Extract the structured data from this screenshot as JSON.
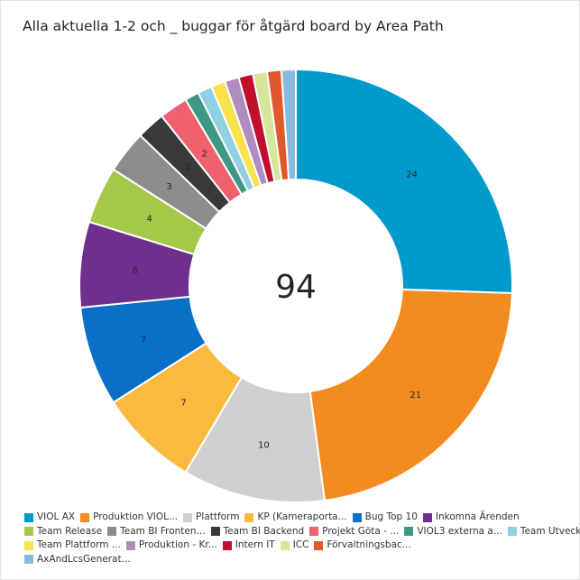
{
  "title": "Alla aktuella 1-2 och _ buggar för åtgärd board by Area Path",
  "chart_data": {
    "type": "pie",
    "variant": "donut",
    "title": "Alla aktuella 1-2 och _ buggar för åtgärd board by Area Path",
    "center_label": "94",
    "legend_position": "bottom",
    "slices": [
      {
        "label": "VIOL AX",
        "value": 24,
        "color": "#0099cc",
        "data_label": "24"
      },
      {
        "label": "Produktion VIOL...",
        "value": 21,
        "color": "#f38b1f",
        "data_label": "21"
      },
      {
        "label": "Plattform",
        "value": 10,
        "color": "#d0d0d0",
        "data_label": "10"
      },
      {
        "label": "KP (Kameraporta...",
        "value": 7,
        "color": "#fbb93e",
        "data_label": "7"
      },
      {
        "label": "Bug Top 10",
        "value": 7,
        "color": "#0b6fc8",
        "data_label": "7"
      },
      {
        "label": "Inkomna Ärenden",
        "value": 6,
        "color": "#6f2f8f",
        "data_label": "6"
      },
      {
        "label": "Team Release",
        "value": 4,
        "color": "#a5c84b",
        "data_label": "4"
      },
      {
        "label": "Team BI Fronten...",
        "value": 3,
        "color": "#8c8c8c",
        "data_label": "3"
      },
      {
        "label": "Team BI Backend",
        "value": 2,
        "color": "#3a3a3a",
        "data_label": "2"
      },
      {
        "label": "Projekt Göta - ...",
        "value": 2,
        "color": "#f0616e",
        "data_label": "2"
      },
      {
        "label": "VIOL3 externa a...",
        "value": 1,
        "color": "#3f9883",
        "data_label": ""
      },
      {
        "label": "Team Utveckling...",
        "value": 1,
        "color": "#8fd0e3",
        "data_label": ""
      },
      {
        "label": "Team Plattform ...",
        "value": 1,
        "color": "#f8e34f",
        "data_label": ""
      },
      {
        "label": "Produktion - Kr...",
        "value": 1,
        "color": "#b18cc0",
        "data_label": ""
      },
      {
        "label": "Intern IT",
        "value": 1,
        "color": "#c0102c",
        "data_label": ""
      },
      {
        "label": "ICC",
        "value": 1,
        "color": "#d6e59a",
        "data_label": ""
      },
      {
        "label": "Förvaltningsbac...",
        "value": 1,
        "color": "#e2582c",
        "data_label": ""
      },
      {
        "label": "AxAndLcsGenerat...",
        "value": 1,
        "color": "#8ab9e0",
        "data_label": ""
      }
    ]
  }
}
